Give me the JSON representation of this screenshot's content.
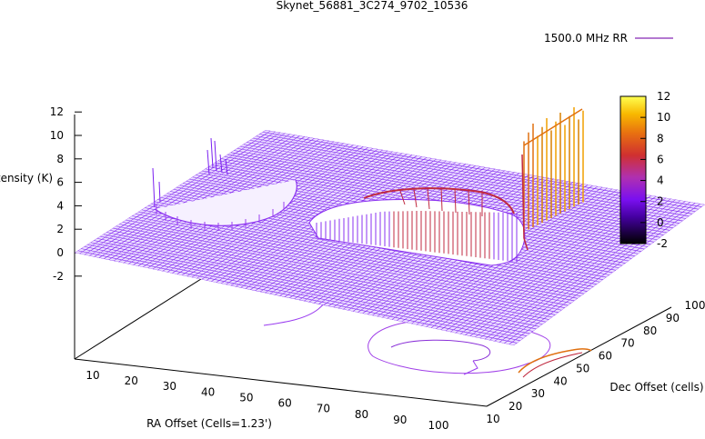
{
  "chart_data": {
    "type": "surface",
    "title": "Skynet_56881_3C274_9702_10536",
    "legend": {
      "entry": "1500.0 MHz RR",
      "placement": "top-right"
    },
    "xlabel": "RA Offset (Cells=1.23')",
    "ylabel": "Dec Offset (cells)",
    "zlabel": "Intensity (K)",
    "xticks": [
      "10",
      "20",
      "30",
      "40",
      "50",
      "60",
      "70",
      "80",
      "90",
      "100"
    ],
    "yticks": [
      "10",
      "20",
      "30",
      "40",
      "50",
      "60",
      "70",
      "80",
      "90",
      "100"
    ],
    "zticks": [
      "12",
      "10",
      "8",
      "6",
      "4",
      "2",
      "0",
      "-2"
    ],
    "zlim": [
      -2,
      12
    ],
    "colorbar": {
      "ticks": [
        "12",
        "10",
        "8",
        "6",
        "4",
        "2",
        "0",
        "-2"
      ],
      "range": [
        -2,
        12
      ],
      "colors": [
        "#000000",
        "#5b00c8",
        "#9b20e8",
        "#c01a6a",
        "#e04010",
        "#f08000",
        "#f8c000",
        "#ffff40"
      ]
    },
    "features": [
      {
        "name": "ridge",
        "peak": 9,
        "description_level": "left ridge"
      },
      {
        "name": "central-bump",
        "peak": 5
      },
      {
        "name": "bright-source",
        "peak": 11.5
      }
    ],
    "colors": {
      "surface": "#7a1ff0",
      "mid": "#c02a40",
      "high": "#f0a000"
    }
  }
}
